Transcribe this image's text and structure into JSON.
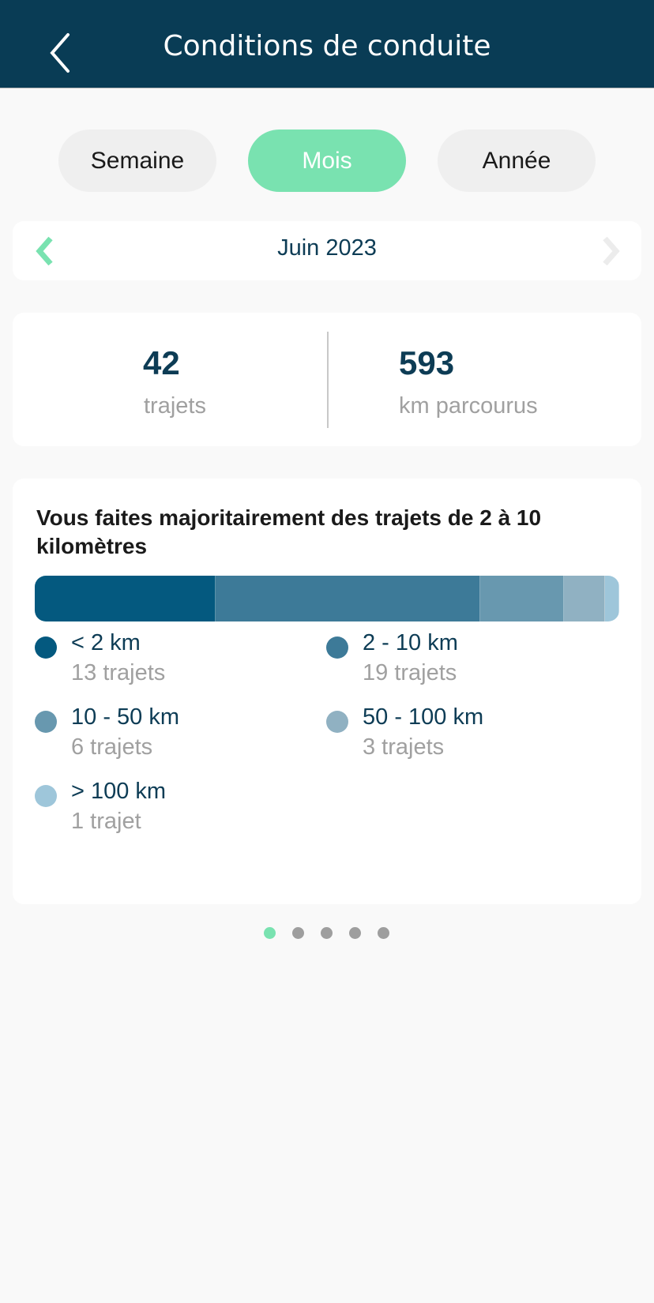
{
  "header": {
    "title": "Conditions de conduite",
    "back_icon": "chevron-left-icon"
  },
  "period_tabs": [
    {
      "label": "Semaine",
      "active": false
    },
    {
      "label": "Mois",
      "active": true
    },
    {
      "label": "Année",
      "active": false
    }
  ],
  "period_nav": {
    "label": "Juin 2023",
    "prev_enabled": true,
    "next_enabled": false
  },
  "stats": {
    "trips_value": "42",
    "trips_label": "trajets",
    "km_value": "593",
    "km_label": "km parcourus"
  },
  "distribution": {
    "title": "Vous faites majoritairement des trajets de 2 à 10 kilomètres",
    "items": [
      {
        "label": "< 2 km",
        "sub": "13 trajets",
        "count": 13,
        "color": "#04597f"
      },
      {
        "label": "2 - 10 km",
        "sub": "19 trajets",
        "count": 19,
        "color": "#3d7a98"
      },
      {
        "label": "10 - 50 km",
        "sub": "6 trajets",
        "count": 6,
        "color": "#6898af"
      },
      {
        "label": "50 - 100 km",
        "sub": "3 trajets",
        "count": 3,
        "color": "#90b1c2"
      },
      {
        "label": "> 100 km",
        "sub": "1 trajet",
        "count": 1,
        "color": "#9ec6da"
      }
    ]
  },
  "pagination": {
    "count": 5,
    "active": 0,
    "active_color": "#79e2b0"
  },
  "colors": {
    "header": "#093c55",
    "accent": "#79e2b0",
    "text_dark": "#0d3c55"
  }
}
